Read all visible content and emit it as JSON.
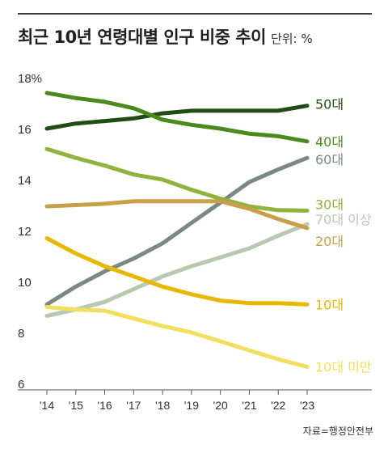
{
  "chart_data": {
    "type": "line",
    "title": "최근 10년 연령대별 인구 비중 추이",
    "unit": "단위: %",
    "source": "자료=행정안전부",
    "ylim": [
      6,
      18
    ],
    "yticks": [
      "6",
      "8",
      "10",
      "12",
      "14",
      "16",
      "18%"
    ],
    "categories": [
      "'14",
      "'15",
      "'16",
      "'17",
      "'18",
      "'19",
      "'20",
      "'21",
      "'22",
      "'23"
    ],
    "grid": false,
    "series": [
      {
        "name": "50대",
        "color": "#1f4d14",
        "values": [
          16.0,
          16.2,
          16.3,
          16.4,
          16.6,
          16.7,
          16.7,
          16.7,
          16.7,
          16.9
        ]
      },
      {
        "name": "40대",
        "color": "#4b8a1c",
        "values": [
          17.4,
          17.2,
          17.05,
          16.8,
          16.35,
          16.15,
          16.0,
          15.8,
          15.7,
          15.5
        ]
      },
      {
        "name": "60대",
        "color": "#7a8a80",
        "values": [
          9.1,
          9.8,
          10.4,
          10.9,
          11.5,
          12.3,
          13.1,
          13.9,
          14.4,
          14.85
        ]
      },
      {
        "name": "30대",
        "color": "#8fb33c",
        "values": [
          15.2,
          14.85,
          14.55,
          14.2,
          14.0,
          13.6,
          13.25,
          12.95,
          12.8,
          12.78
        ]
      },
      {
        "name": "70대 이상",
        "color": "#b8c9b0",
        "values": [
          8.65,
          8.9,
          9.2,
          9.7,
          10.2,
          10.6,
          10.95,
          11.3,
          11.8,
          12.25
        ]
      },
      {
        "name": "20대",
        "color": "#c9a04a",
        "values": [
          12.95,
          13.0,
          13.05,
          13.15,
          13.15,
          13.15,
          13.15,
          12.85,
          12.45,
          12.1
        ]
      },
      {
        "name": "10대",
        "color": "#e8b800",
        "values": [
          11.7,
          11.1,
          10.6,
          10.2,
          9.8,
          9.5,
          9.25,
          9.15,
          9.15,
          9.1
        ]
      },
      {
        "name": "10대 미만",
        "color": "#f2df60",
        "values": [
          9.0,
          8.9,
          8.85,
          8.55,
          8.25,
          8.0,
          7.65,
          7.3,
          6.95,
          6.65
        ]
      }
    ]
  }
}
